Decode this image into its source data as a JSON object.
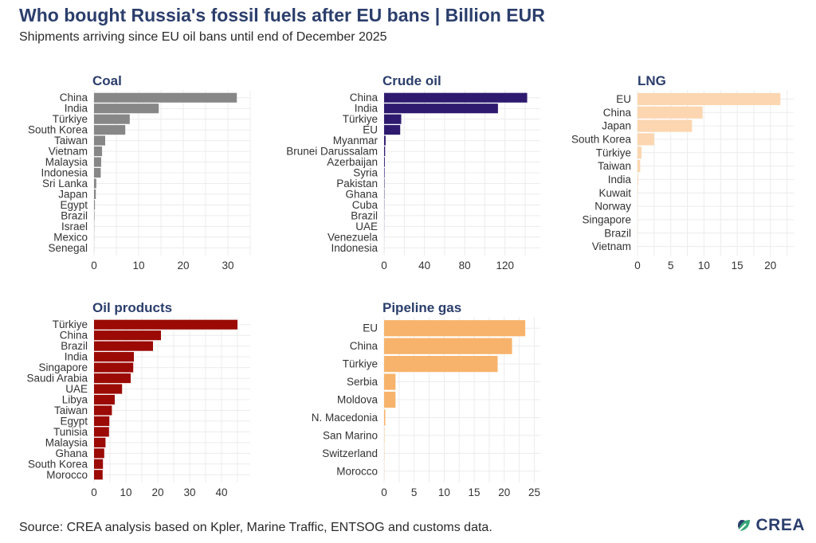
{
  "title": "Who bought Russia's fossil fuels after EU bans | Billion EUR",
  "subtitle": "Shipments arriving since EU oil bans until end of December 2025",
  "footer": "Source: CREA analysis based on Kpler, Marine Traffic, ENTSOG and customs data.",
  "logo": {
    "text": "CREA",
    "icon": "crea-leaf-icon"
  },
  "chart_data": [
    {
      "type": "bar",
      "orientation": "horizontal",
      "title": "Coal",
      "color": "#878787",
      "categories": [
        "China",
        "India",
        "Türkiye",
        "South Korea",
        "Taiwan",
        "Vietnam",
        "Malaysia",
        "Indonesia",
        "Sri Lanka",
        "Japan",
        "Egypt",
        "Brazil",
        "Israel",
        "Mexico",
        "Senegal"
      ],
      "values": [
        32.0,
        14.5,
        8.0,
        7.0,
        2.5,
        1.8,
        1.6,
        1.5,
        0.5,
        0.4,
        0.2,
        0.1,
        0.05,
        0.03,
        0.02
      ],
      "xlim": [
        0,
        35
      ],
      "xticks": [
        0,
        10,
        20,
        30
      ],
      "grid": true
    },
    {
      "type": "bar",
      "orientation": "horizontal",
      "title": "Crude oil",
      "color": "#2e1a6e",
      "categories": [
        "China",
        "India",
        "Türkiye",
        "EU",
        "Myanmar",
        "Brunei Darussalam",
        "Azerbaijan",
        "Syria",
        "Pakistan",
        "Ghana",
        "Cuba",
        "Brazil",
        "UAE",
        "Venezuela",
        "Indonesia"
      ],
      "values": [
        142,
        113,
        17,
        16,
        1.5,
        1.0,
        0.7,
        0.5,
        0.4,
        0.3,
        0.2,
        0.15,
        0.1,
        0.05,
        0.03
      ],
      "xlim": [
        0,
        155
      ],
      "xticks": [
        0,
        40,
        80,
        120
      ],
      "grid": true
    },
    {
      "type": "bar",
      "orientation": "horizontal",
      "title": "LNG",
      "color": "#fbd6b0",
      "categories": [
        "EU",
        "China",
        "Japan",
        "South Korea",
        "Türkiye",
        "Taiwan",
        "India",
        "Kuwait",
        "Norway",
        "Singapore",
        "Brazil",
        "Vietnam"
      ],
      "values": [
        21.5,
        9.8,
        8.2,
        2.5,
        0.6,
        0.4,
        0.1,
        0.05,
        0.03,
        0.02,
        0.02,
        0.01
      ],
      "xlim": [
        0,
        23.5
      ],
      "xticks": [
        0,
        5,
        10,
        15,
        20
      ],
      "grid": true
    },
    {
      "type": "bar",
      "orientation": "horizontal",
      "title": "Oil products",
      "color": "#9b0a05",
      "categories": [
        "Türkiye",
        "China",
        "Brazil",
        "India",
        "Singapore",
        "Saudi Arabia",
        "UAE",
        "Libya",
        "Taiwan",
        "Egypt",
        "Tunisia",
        "Malaysia",
        "Ghana",
        "South Korea",
        "Morocco"
      ],
      "values": [
        45.0,
        21.0,
        18.5,
        12.5,
        12.3,
        11.5,
        8.8,
        6.5,
        5.6,
        4.8,
        4.7,
        3.6,
        3.2,
        2.8,
        2.7
      ],
      "xlim": [
        0,
        49
      ],
      "xticks": [
        0,
        10,
        20,
        30,
        40
      ],
      "grid": true
    },
    {
      "type": "bar",
      "orientation": "horizontal",
      "title": "Pipeline gas",
      "color": "#f7b36b",
      "categories": [
        "EU",
        "China",
        "Türkiye",
        "Serbia",
        "Moldova",
        "N. Macedonia",
        "San Marino",
        "Switzerland",
        "Morocco"
      ],
      "values": [
        23.5,
        21.3,
        18.9,
        1.9,
        1.9,
        0.2,
        0.05,
        0.03,
        0.02
      ],
      "xlim": [
        0,
        26
      ],
      "xticks": [
        0,
        5,
        10,
        15,
        20,
        25
      ],
      "grid": true
    }
  ]
}
